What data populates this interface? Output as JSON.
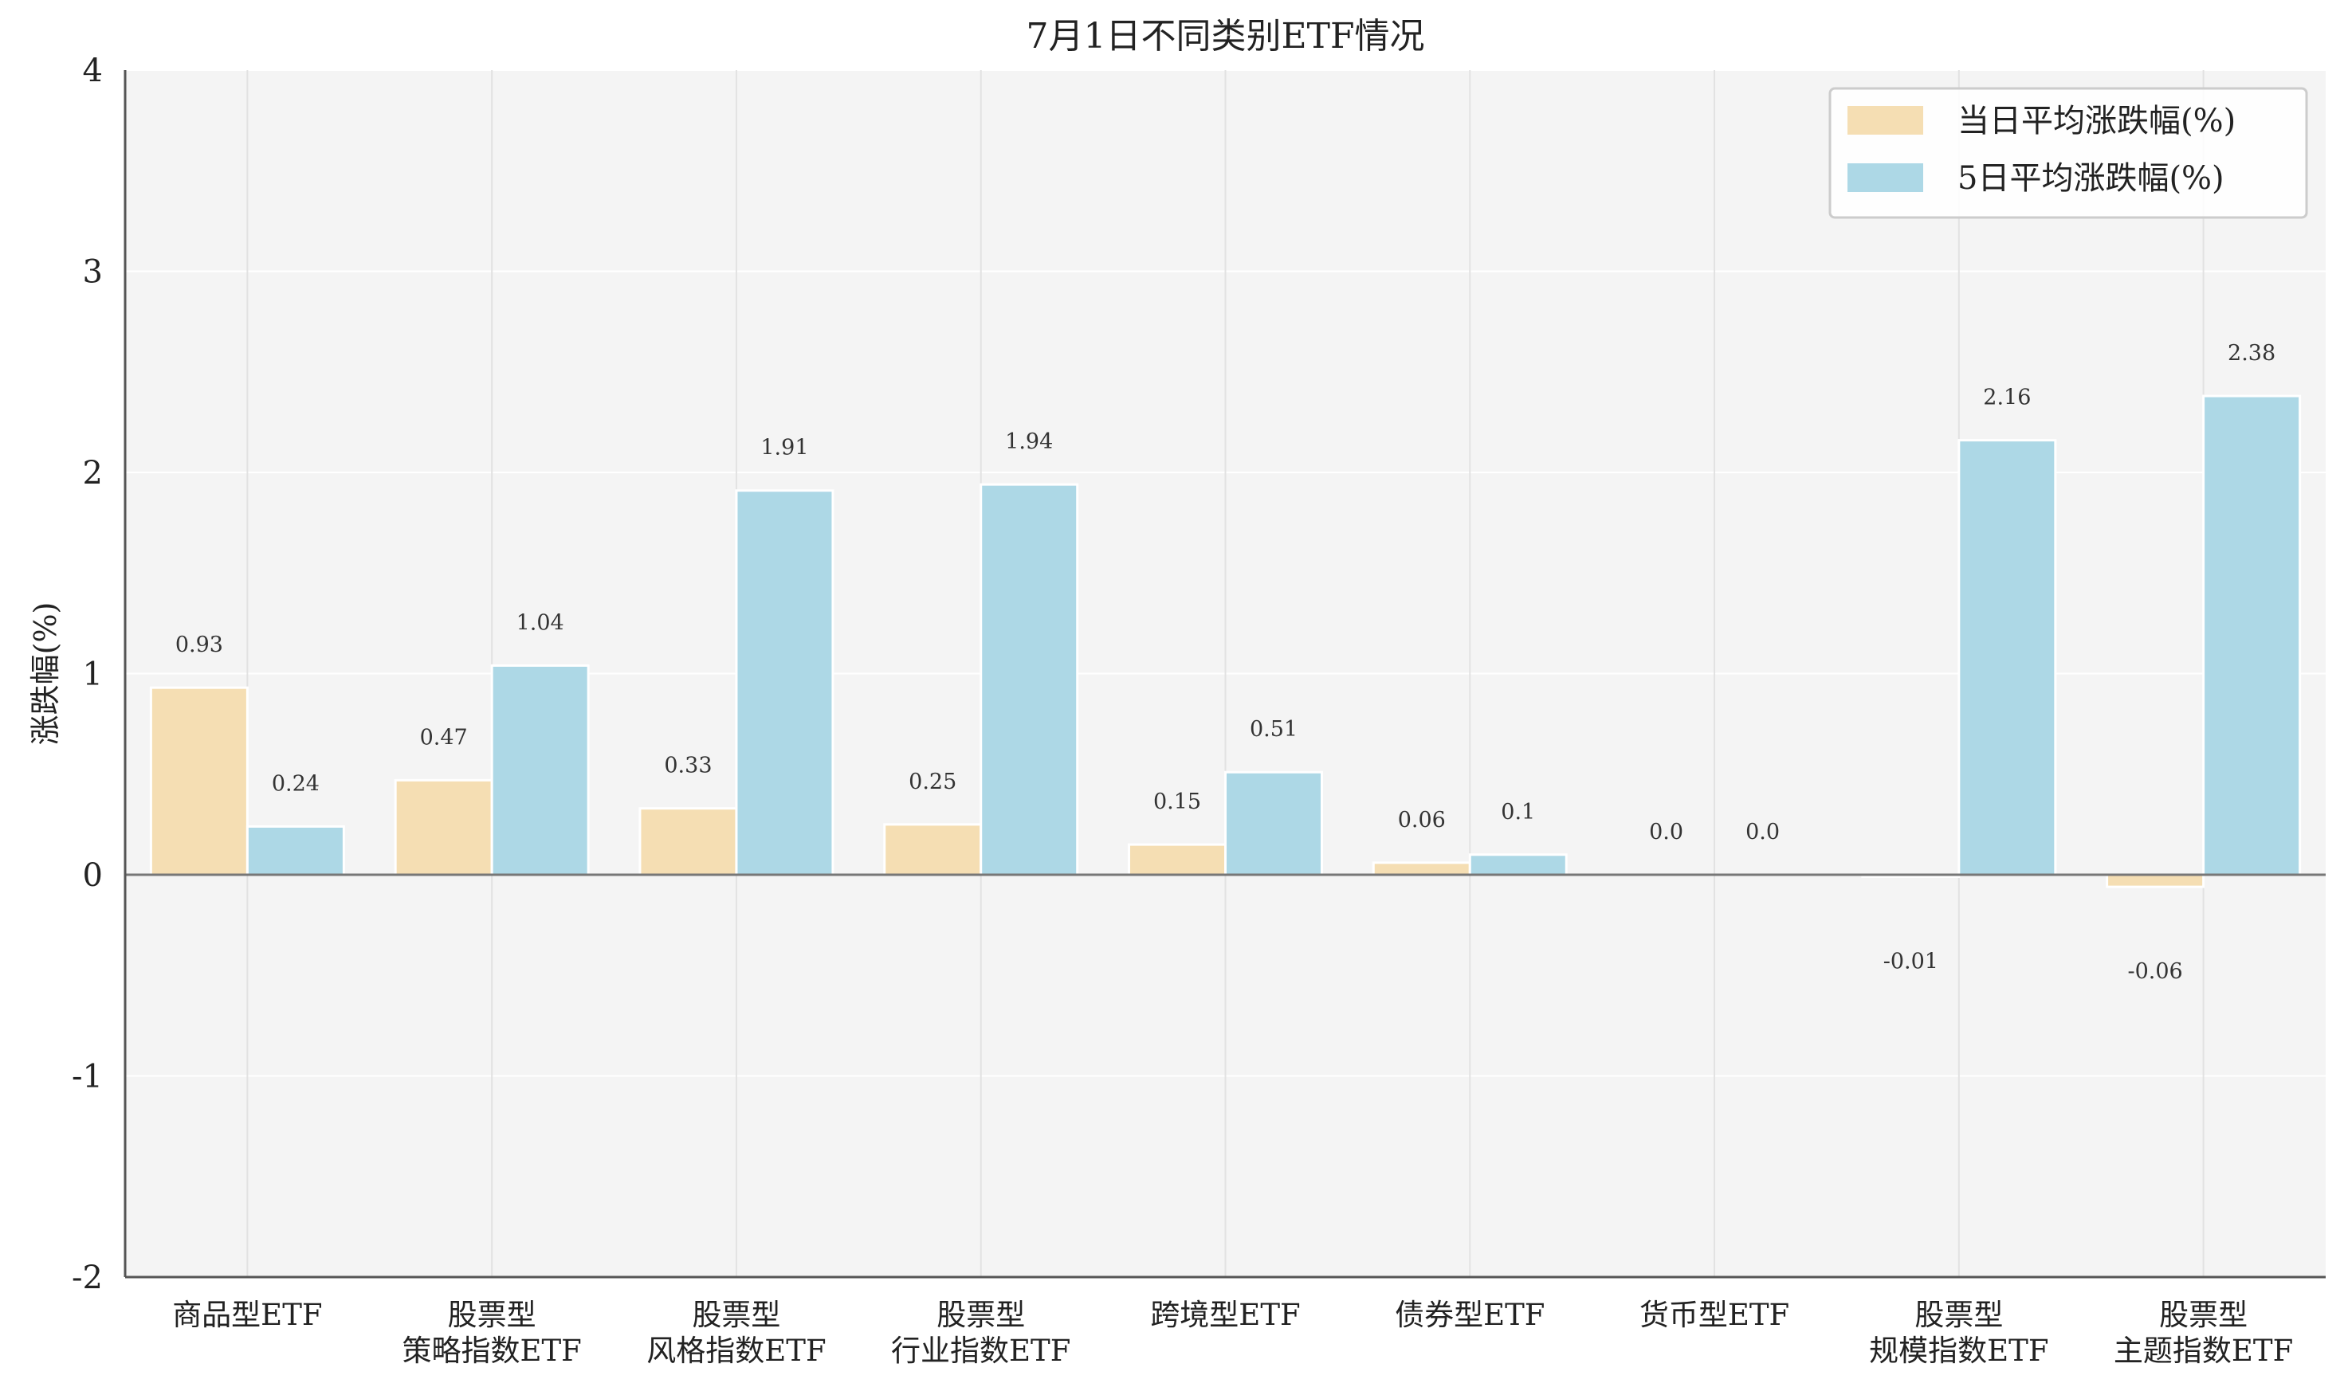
{
  "chart_data": {
    "type": "bar",
    "title": "7月1日不同类别ETF情况",
    "ylabel": "涨跌幅(%)",
    "xlabel": "",
    "ylim": [
      -2,
      4
    ],
    "yticks": [
      "-2",
      "-1",
      "0",
      "1",
      "2",
      "3",
      "4"
    ],
    "grid": true,
    "legend_position": "top-right",
    "categories": [
      [
        "商品型ETF"
      ],
      [
        "股票型",
        "策略指数ETF"
      ],
      [
        "股票型",
        "风格指数ETF"
      ],
      [
        "股票型",
        "行业指数ETF"
      ],
      [
        "跨境型ETF"
      ],
      [
        "债券型ETF"
      ],
      [
        "货币型ETF"
      ],
      [
        "股票型",
        "规模指数ETF"
      ],
      [
        "股票型",
        "主题指数ETF"
      ]
    ],
    "series": [
      {
        "name": "当日平均涨跌幅(%)",
        "color": "#f5deb3",
        "values": [
          0.93,
          0.47,
          0.33,
          0.25,
          0.15,
          0.06,
          0.0,
          -0.01,
          -0.06
        ],
        "labels": [
          "0.93",
          "0.47",
          "0.33",
          "0.25",
          "0.15",
          "0.06",
          "0.0",
          "-0.01",
          "-0.06"
        ]
      },
      {
        "name": "5日平均涨跌幅(%)",
        "color": "#add8e6",
        "values": [
          0.24,
          1.04,
          1.91,
          1.94,
          0.51,
          0.1,
          0.0,
          2.16,
          2.38
        ],
        "labels": [
          "0.24",
          "1.04",
          "1.91",
          "1.94",
          "0.51",
          "0.1",
          "0.0",
          "2.16",
          "2.38"
        ]
      }
    ],
    "plot_background": "#f4f4f4",
    "grid_color": "#ffffff"
  }
}
